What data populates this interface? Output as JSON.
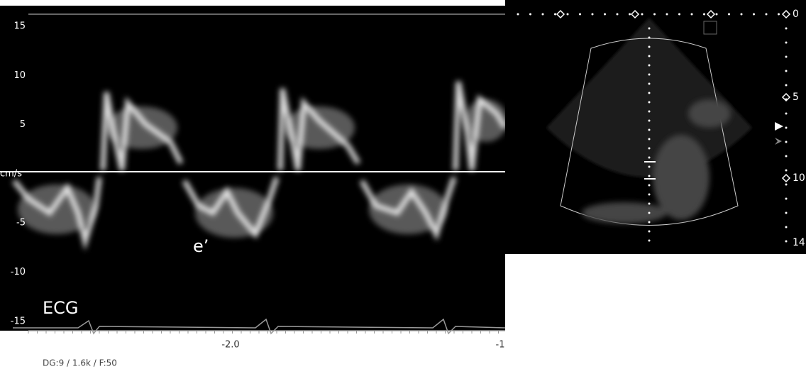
{
  "doppler": {
    "yticks": [
      "15",
      "10",
      "5",
      "cm/s",
      "-5",
      "-10",
      "-15"
    ],
    "xticks": [
      "-2.0",
      "-1"
    ],
    "annotations": {
      "wave": "e’",
      "ecg": "ECG"
    },
    "footer": "DG:9 / 1.6k / F:50"
  },
  "echo": {
    "depth_ticks": [
      "0",
      "5",
      "10",
      "14"
    ]
  }
}
